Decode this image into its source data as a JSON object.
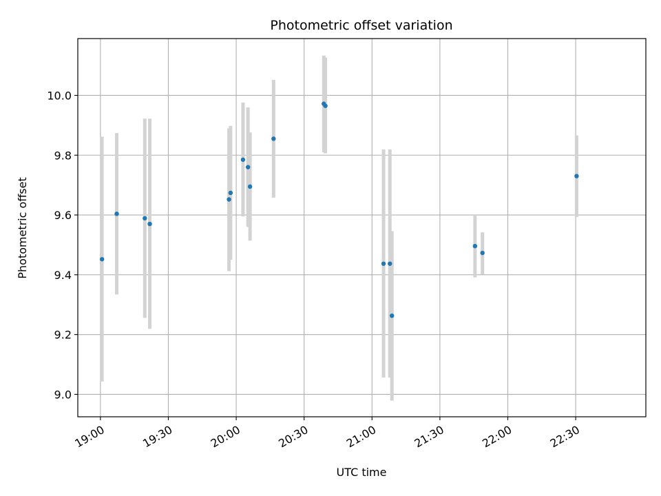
{
  "chart_data": {
    "type": "scatter",
    "title": "Photometric offset variation",
    "xlabel": "UTC time",
    "ylabel": "Photometric offset",
    "x_unit": "UTC time (HH:MM)",
    "xlim": [
      "18:50",
      "23:01"
    ],
    "ylim": [
      8.925,
      10.19
    ],
    "x_ticks": [
      "19:00",
      "19:30",
      "20:00",
      "20:30",
      "21:00",
      "21:30",
      "22:00",
      "22:30"
    ],
    "y_ticks": [
      9.0,
      9.2,
      9.4,
      9.6,
      9.8,
      10.0
    ],
    "grid": true,
    "marker_color": "#1f77b4",
    "errorbar_color": "#d3d3d3",
    "points": [
      {
        "time": "19:00:42",
        "value": 9.452,
        "low": 9.043,
        "high": 9.862
      },
      {
        "time": "19:07:12",
        "value": 9.604,
        "low": 9.334,
        "high": 9.874
      },
      {
        "time": "19:19:36",
        "value": 9.589,
        "low": 9.256,
        "high": 9.922
      },
      {
        "time": "19:21:48",
        "value": 9.57,
        "low": 9.219,
        "high": 9.922
      },
      {
        "time": "19:56:48",
        "value": 9.652,
        "low": 9.412,
        "high": 9.89
      },
      {
        "time": "19:57:30",
        "value": 9.674,
        "low": 9.45,
        "high": 9.898
      },
      {
        "time": "20:03:00",
        "value": 9.785,
        "low": 9.595,
        "high": 9.976
      },
      {
        "time": "20:05:12",
        "value": 9.76,
        "low": 9.56,
        "high": 9.96
      },
      {
        "time": "20:06:06",
        "value": 9.695,
        "low": 9.514,
        "high": 9.876
      },
      {
        "time": "20:16:30",
        "value": 9.855,
        "low": 9.658,
        "high": 10.052
      },
      {
        "time": "20:38:42",
        "value": 9.972,
        "low": 9.81,
        "high": 10.133
      },
      {
        "time": "20:39:24",
        "value": 9.965,
        "low": 9.806,
        "high": 10.127
      },
      {
        "time": "21:05:06",
        "value": 9.437,
        "low": 9.056,
        "high": 9.819
      },
      {
        "time": "21:07:54",
        "value": 9.437,
        "low": 9.056,
        "high": 9.819
      },
      {
        "time": "21:08:48",
        "value": 9.263,
        "low": 8.979,
        "high": 9.546
      },
      {
        "time": "21:45:30",
        "value": 9.496,
        "low": 9.391,
        "high": 9.6
      },
      {
        "time": "21:48:48",
        "value": 9.473,
        "low": 9.401,
        "high": 9.542
      },
      {
        "time": "22:30:24",
        "value": 9.73,
        "low": 9.593,
        "high": 9.866
      }
    ]
  }
}
